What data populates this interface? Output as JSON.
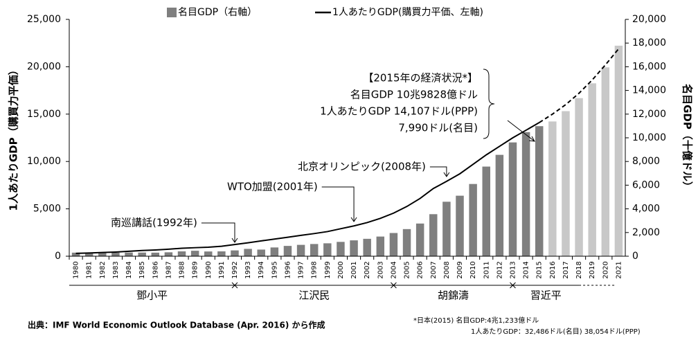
{
  "chart_data": {
    "type": "bar_line",
    "legend": [
      "名目GDP（右軸）",
      "1人あたりGDP(購買力平価、左軸)"
    ],
    "ylabel": "1人あたりGDP（購買力平価）",
    "y2label": "名目GDP（十億ドル）",
    "categories": [
      "1980",
      "1981",
      "1982",
      "1983",
      "1984",
      "1985",
      "1986",
      "1987",
      "1988",
      "1989",
      "1990",
      "1991",
      "1992",
      "1993",
      "1994",
      "1995",
      "1996",
      "1997",
      "1998",
      "1999",
      "2000",
      "2001",
      "2002",
      "2003",
      "2004",
      "2005",
      "2006",
      "2007",
      "2008",
      "2009",
      "2010",
      "2011",
      "2012",
      "2013",
      "2014",
      "2015",
      "2016",
      "2017",
      "2018",
      "2019",
      "2020",
      "2021"
    ],
    "series": [
      {
        "name": "名目GDP（右軸）",
        "axis": "y2",
        "colors": [
          "#7f7f7f",
          "#7f7f7f",
          "#7f7f7f",
          "#7f7f7f",
          "#7f7f7f",
          "#7f7f7f",
          "#7f7f7f",
          "#7f7f7f",
          "#7f7f7f",
          "#7f7f7f",
          "#7f7f7f",
          "#7f7f7f",
          "#7f7f7f",
          "#7f7f7f",
          "#7f7f7f",
          "#7f7f7f",
          "#7f7f7f",
          "#7f7f7f",
          "#7f7f7f",
          "#7f7f7f",
          "#7f7f7f",
          "#7f7f7f",
          "#7f7f7f",
          "#7f7f7f",
          "#7f7f7f",
          "#7f7f7f",
          "#7f7f7f",
          "#7f7f7f",
          "#7f7f7f",
          "#7f7f7f",
          "#7f7f7f",
          "#7f7f7f",
          "#7f7f7f",
          "#7f7f7f",
          "#7f7f7f",
          "#7f7f7f",
          "#c8c8c8",
          "#c8c8c8",
          "#c8c8c8",
          "#c8c8c8",
          "#c8c8c8",
          "#c8c8c8"
        ],
        "values": [
          300,
          290,
          280,
          300,
          310,
          310,
          300,
          330,
          410,
          460,
          400,
          410,
          490,
          620,
          560,
          740,
          870,
          960,
          1030,
          1090,
          1210,
          1340,
          1470,
          1660,
          1960,
          2290,
          2760,
          3550,
          4600,
          5110,
          6100,
          7570,
          8560,
          9610,
          10480,
          10983,
          11380,
          12250,
          13350,
          14600,
          15950,
          17780
        ]
      },
      {
        "name": "1人あたりGDP(購買力平価、左軸)",
        "color": "#000000",
        "dashed": [
          false,
          false,
          false,
          false,
          false,
          false,
          false,
          false,
          false,
          false,
          false,
          false,
          false,
          false,
          false,
          false,
          false,
          false,
          false,
          false,
          false,
          false,
          false,
          false,
          false,
          false,
          false,
          false,
          false,
          false,
          false,
          false,
          false,
          false,
          false,
          false,
          true,
          true,
          true,
          true,
          true,
          true
        ],
        "values": [
          300,
          340,
          390,
          440,
          520,
          600,
          660,
          740,
          840,
          900,
          950,
          1050,
          1230,
          1420,
          1620,
          1810,
          2000,
          2200,
          2390,
          2600,
          2900,
          3200,
          3550,
          4000,
          4550,
          5250,
          6100,
          7150,
          7900,
          8700,
          9700,
          10700,
          11600,
          12500,
          13300,
          14107,
          15000,
          16000,
          17200,
          18600,
          20200,
          21900
        ]
      }
    ],
    "ylim": [
      0,
      25000
    ],
    "yticks": [
      0,
      {
        "value": 5000,
        "label": "5,000"
      },
      {
        "value": 10000,
        "label": "10,000"
      },
      {
        "value": 15000,
        "label": "15,000"
      },
      {
        "value": 20000,
        "label": "20,000"
      },
      {
        "value": 25000,
        "label": "25,000"
      }
    ],
    "y2lim": [
      0,
      20000
    ],
    "y2ticks": [
      0,
      {
        "value": 2000,
        "label": "2,000"
      },
      {
        "value": 4000,
        "label": "4,000"
      },
      {
        "value": 6000,
        "label": "6,000"
      },
      {
        "value": 8000,
        "label": "8,000"
      },
      {
        "value": 10000,
        "label": "10,000"
      },
      {
        "value": 12000,
        "label": "12,000"
      },
      {
        "value": 14000,
        "label": "14,000"
      },
      {
        "value": 16000,
        "label": "16,000"
      },
      {
        "value": 18000,
        "label": "18,000"
      },
      {
        "value": 20000,
        "label": "20,000"
      }
    ],
    "eras": [
      {
        "label": "鄧小平",
        "start": "1980",
        "end": "1992"
      },
      {
        "label": "江沢民",
        "start": "1992",
        "end": "2004"
      },
      {
        "label": "胡錦濤",
        "start": "2004",
        "end": "2013"
      },
      {
        "label": "習近平",
        "start": "2013",
        "end": "2021"
      }
    ],
    "annotations": [
      "南巡講話(1992年)",
      "WTO加盟(2001年)",
      "北京オリンピック(2008年)"
    ],
    "box": [
      "【2015年の経済状況*】",
      "名目GDP 10兆9828億ドル",
      "1人あたりGDP 14,107ドル(PPP)",
      "7,990ドル(名目)"
    ],
    "source": "出典：IMF World Economic Outlook Database (Apr. 2016) から作成",
    "footnote": [
      "*日本(2015) 名目GDP:4兆1,233億ドル",
      "1人あたりGDP：32,486ドル(名目) 38,054ドル(PPP)"
    ]
  }
}
